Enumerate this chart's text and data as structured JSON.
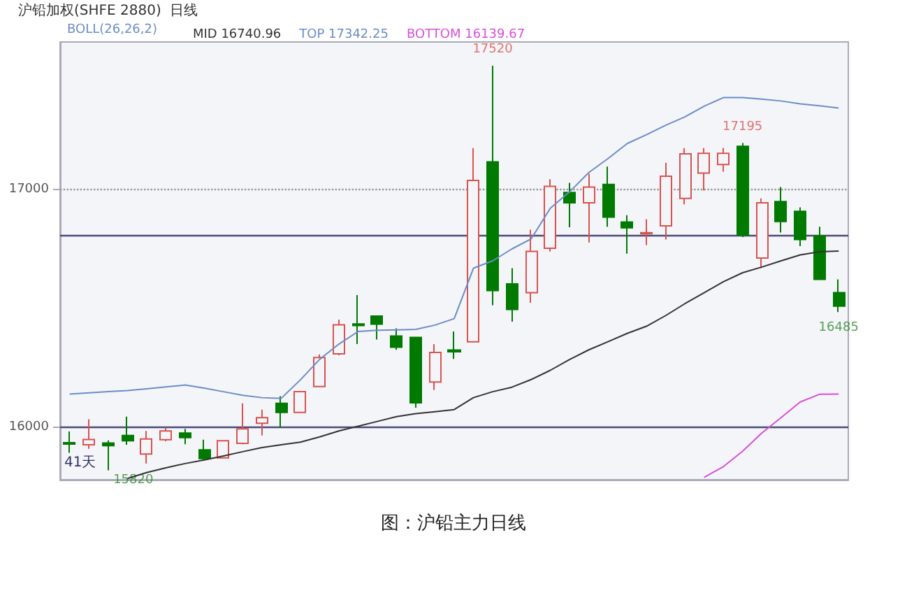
{
  "chart_data": {
    "type": "candlestick",
    "title": "沪铅加权(SHFE 2880)  日线",
    "legend_title": "BOLL(26,26,2)",
    "categories": [
      null,
      null,
      null,
      null,
      null,
      null,
      null,
      null,
      null,
      null,
      null,
      null,
      null,
      null,
      null,
      null,
      null,
      null,
      null,
      null,
      null,
      null,
      null,
      null,
      null,
      null,
      null,
      null,
      null,
      null,
      null,
      null,
      null,
      null,
      null,
      null,
      null,
      null,
      null,
      null,
      null
    ],
    "ohlc": [
      [
        15936,
        15983,
        15893,
        15930
      ],
      [
        15927,
        16034,
        15910,
        15949
      ],
      [
        15934,
        15945,
        15820,
        15923
      ],
      [
        15966,
        16045,
        15927,
        15944
      ],
      [
        15888,
        15985,
        15848,
        15951
      ],
      [
        15948,
        16000,
        15942,
        15985
      ],
      [
        15976,
        15994,
        15929,
        15957
      ],
      [
        15906,
        15948,
        15865,
        15869
      ],
      [
        15872,
        15944,
        15869,
        15944
      ],
      [
        15933,
        16101,
        15929,
        15994
      ],
      [
        16017,
        16075,
        15966,
        16041
      ],
      [
        16101,
        16131,
        16000,
        16063
      ],
      [
        16063,
        16150,
        16060,
        16150
      ],
      [
        16172,
        16307,
        16172,
        16294
      ],
      [
        16309,
        16453,
        16303,
        16431
      ],
      [
        16435,
        16556,
        16350,
        16428
      ],
      [
        16468,
        16468,
        16369,
        16434
      ],
      [
        16384,
        16416,
        16326,
        16337
      ],
      [
        16378,
        16378,
        16083,
        16103
      ],
      [
        16191,
        16350,
        16157,
        16315
      ],
      [
        16325,
        16403,
        16288,
        16318
      ],
      [
        16360,
        17174,
        16360,
        17038
      ],
      [
        17116,
        17520,
        16513,
        16575
      ],
      [
        16603,
        16669,
        16444,
        16496
      ],
      [
        16566,
        16831,
        16524,
        16740
      ],
      [
        16753,
        17043,
        16740,
        17013
      ],
      [
        16987,
        17028,
        16841,
        16944
      ],
      [
        16944,
        17066,
        16777,
        17010
      ],
      [
        17021,
        17096,
        16843,
        16884
      ],
      [
        16863,
        16892,
        16730,
        16839
      ],
      [
        16814,
        16875,
        16766,
        16818
      ],
      [
        16847,
        17112,
        16790,
        17056
      ],
      [
        16962,
        17174,
        16937,
        17150
      ],
      [
        17069,
        17174,
        16996,
        17152
      ],
      [
        17105,
        17174,
        17075,
        17152
      ],
      [
        17181,
        17195,
        16800,
        16809
      ],
      [
        16712,
        16962,
        16669,
        16944
      ],
      [
        16949,
        17010,
        16819,
        16865
      ],
      [
        16908,
        16925,
        16762,
        16790
      ],
      [
        16805,
        16843,
        16622,
        16622
      ],
      [
        16566,
        16622,
        16485,
        16510
      ]
    ],
    "colors": [
      "#007a00",
      "#d9534f",
      "#007a00",
      "#007a00",
      "#d9534f",
      "#d9534f",
      "#007a00",
      "#007a00",
      "#d9534f",
      "#d9534f",
      "#d9534f",
      "#007a00",
      "#d9534f",
      "#d9534f",
      "#d9534f",
      "#007a00",
      "#007a00",
      "#007a00",
      "#007a00",
      "#d9534f",
      "#007a00",
      "#d9534f",
      "#007a00",
      "#007a00",
      "#d9534f",
      "#d9534f",
      "#007a00",
      "#d9534f",
      "#007a00",
      "#007a00",
      "#d9534f",
      "#d9534f",
      "#d9534f",
      "#d9534f",
      "#d9534f",
      "#007a00",
      "#d9534f",
      "#007a00",
      "#007a00",
      "#007a00",
      "#007a00"
    ],
    "series": [
      {
        "type": "line",
        "name": "MID 16740.96",
        "color": "#333333",
        "values": [
          null,
          null,
          null,
          15785,
          15810,
          15830,
          15848,
          15863,
          15880,
          15898,
          15915,
          15927,
          15938,
          15960,
          15985,
          16005,
          16025,
          16045,
          16058,
          16066,
          16075,
          16125,
          16150,
          16169,
          16201,
          16240,
          16285,
          16326,
          16360,
          16395,
          16425,
          16470,
          16520,
          16566,
          16612,
          16650,
          16674,
          16700,
          16725,
          16738,
          16741
        ]
      },
      {
        "type": "line",
        "name": "TOP 17342.25",
        "color": "#6b8cc7",
        "values": [
          16140,
          16145,
          16150,
          16155,
          16162,
          16170,
          16178,
          16165,
          16150,
          16135,
          16125,
          16122,
          16200,
          16286,
          16350,
          16403,
          16408,
          16410,
          16412,
          16430,
          16457,
          16669,
          16700,
          16750,
          16792,
          16921,
          16990,
          17071,
          17130,
          17193,
          17230,
          17270,
          17305,
          17350,
          17386,
          17386,
          17380,
          17372,
          17360,
          17352,
          17342
        ]
      },
      {
        "type": "line",
        "name": "BOTTOM 16139.67",
        "color": "#d94fd9",
        "values": [
          null,
          null,
          null,
          null,
          null,
          null,
          null,
          null,
          null,
          null,
          null,
          null,
          null,
          null,
          null,
          null,
          null,
          null,
          null,
          null,
          null,
          null,
          null,
          null,
          null,
          null,
          null,
          null,
          null,
          null,
          null,
          null,
          null,
          15790,
          15835,
          15900,
          15976,
          16041,
          16107,
          16139,
          16140
        ]
      }
    ],
    "ylim": [
      15780,
      17620
    ],
    "yticks": [
      16000,
      17000
    ],
    "legend": "top left",
    "marker": "none",
    "ref_lines": [
      {
        "axis": "y",
        "value": 16000,
        "color": "#4a4a7a"
      },
      {
        "axis": "y",
        "value": 16810,
        "color": "#4a4a7a"
      },
      {
        "axis": "y",
        "value": 17000,
        "color": "#999999",
        "line_style": "dotted"
      }
    ],
    "annotations": [
      {
        "text": "17520",
        "y": 17520
      },
      {
        "text": "17195",
        "y": 17195
      },
      {
        "text": "16485",
        "y": 16485
      },
      {
        "text": "15820",
        "y": 15820
      },
      "41天",
      "图：沪铅主力日线"
    ]
  }
}
